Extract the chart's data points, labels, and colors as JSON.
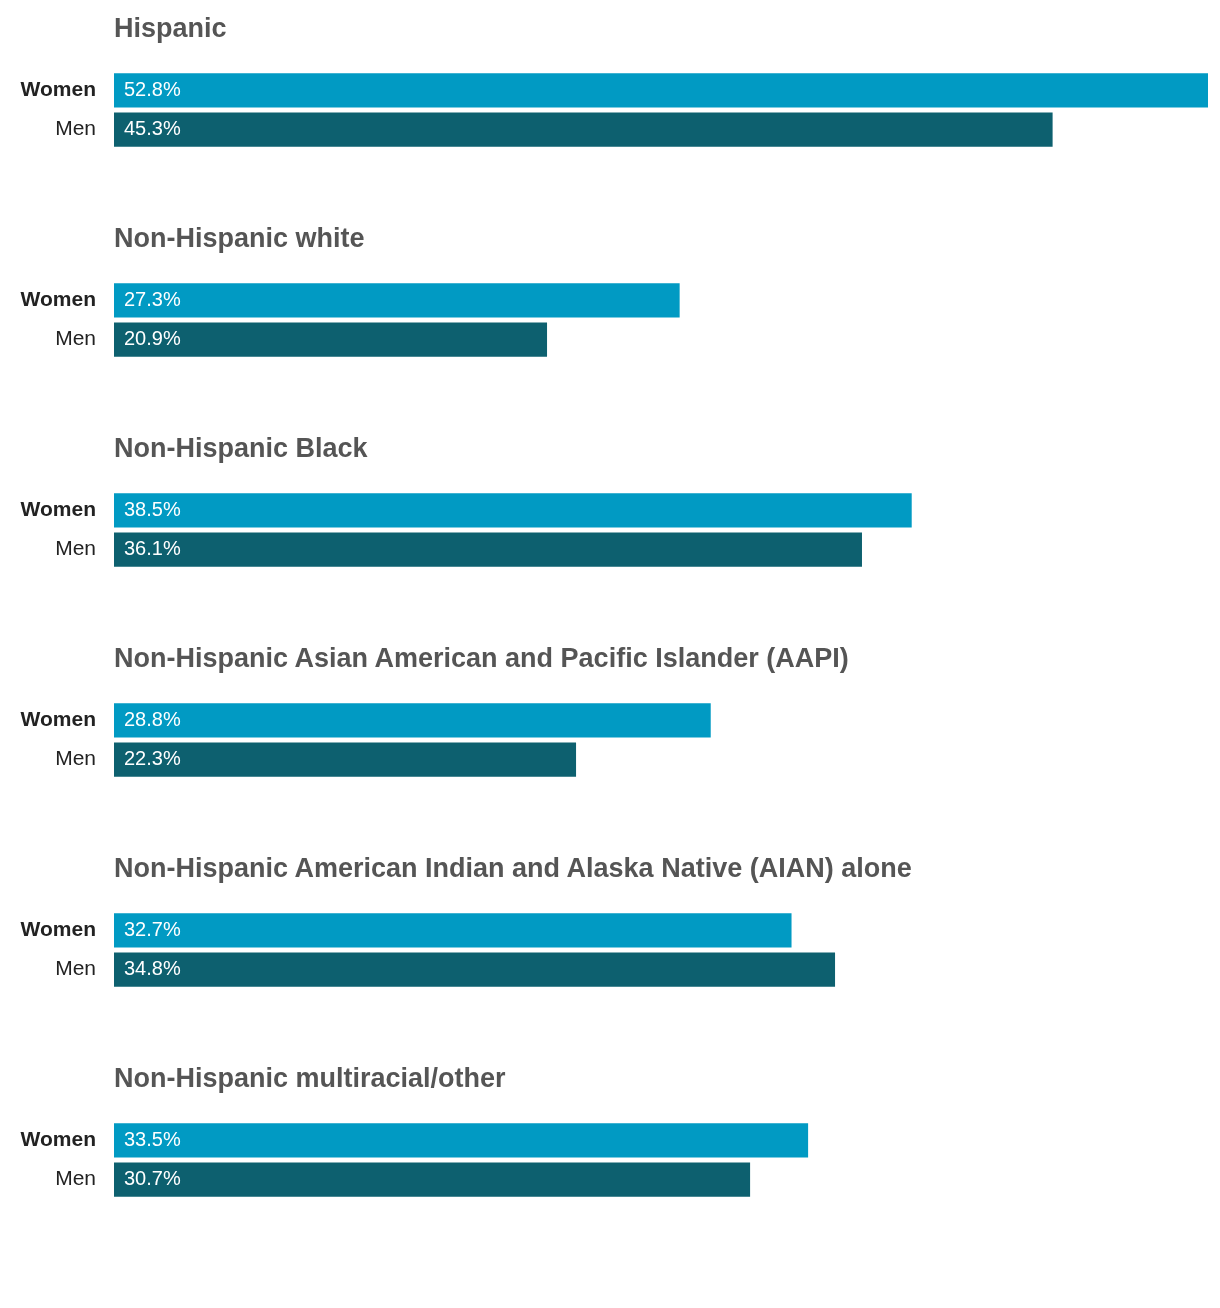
{
  "chart_data": [
    {
      "type": "bar",
      "orientation": "horizontal",
      "title": "Hispanic",
      "categories": [
        "Women",
        "Men"
      ],
      "values": [
        52.8,
        45.3
      ],
      "colors": [
        "#019ac3",
        "#0d606f"
      ],
      "value_labels": [
        "52.8%",
        "45.3%"
      ]
    },
    {
      "type": "bar",
      "orientation": "horizontal",
      "title": "Non-Hispanic white",
      "categories": [
        "Women",
        "Men"
      ],
      "values": [
        27.3,
        20.9
      ],
      "colors": [
        "#019ac3",
        "#0d606f"
      ],
      "value_labels": [
        "27.3%",
        "20.9%"
      ]
    },
    {
      "type": "bar",
      "orientation": "horizontal",
      "title": "Non-Hispanic Black",
      "categories": [
        "Women",
        "Men"
      ],
      "values": [
        38.5,
        36.1
      ],
      "colors": [
        "#019ac3",
        "#0d606f"
      ],
      "value_labels": [
        "38.5%",
        "36.1%"
      ]
    },
    {
      "type": "bar",
      "orientation": "horizontal",
      "title": "Non-Hispanic Asian American and Pacific Islander (AAPI)",
      "categories": [
        "Women",
        "Men"
      ],
      "values": [
        28.8,
        22.3
      ],
      "colors": [
        "#019ac3",
        "#0d606f"
      ],
      "value_labels": [
        "28.8%",
        "22.3%"
      ]
    },
    {
      "type": "bar",
      "orientation": "horizontal",
      "title": "Non-Hispanic American Indian and Alaska Native (AIAN) alone",
      "categories": [
        "Women",
        "Men"
      ],
      "values": [
        32.7,
        34.8
      ],
      "colors": [
        "#019ac3",
        "#0d606f"
      ],
      "value_labels": [
        "32.7%",
        "34.8%"
      ]
    },
    {
      "type": "bar",
      "orientation": "horizontal",
      "title": "Non-Hispanic multiracial/other",
      "categories": [
        "Women",
        "Men"
      ],
      "values": [
        33.5,
        30.7
      ],
      "colors": [
        "#019ac3",
        "#0d606f"
      ],
      "value_labels": [
        "33.5%",
        "30.7%"
      ]
    }
  ]
}
